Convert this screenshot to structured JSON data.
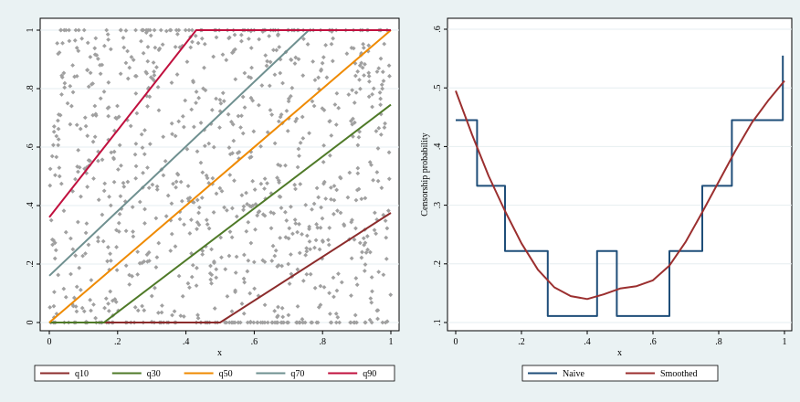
{
  "chart_data": [
    {
      "type": "scatter",
      "title": "",
      "xlabel": "x",
      "ylabel": "",
      "xlim": [
        0,
        1
      ],
      "ylim": [
        0,
        1
      ],
      "x_ticks": [
        "0",
        ".2",
        ".4",
        ".6",
        ".8",
        "1"
      ],
      "y_ticks": [
        "0",
        ".2",
        ".4",
        ".6",
        ".8",
        "1"
      ],
      "grid": true,
      "legend": "bottom",
      "scatter": {
        "color": "#a0a0a0",
        "count": 1000,
        "description_of_distribution": "censored uniform cloud"
      },
      "series": [
        {
          "name": "q10",
          "color": "#8c2c2c",
          "points": [
            [
              0,
              0
            ],
            [
              0.5,
              0
            ],
            [
              1,
              0.375
            ]
          ]
        },
        {
          "name": "q30",
          "color": "#4f7a28",
          "points": [
            [
              0,
              0
            ],
            [
              0.16,
              0
            ],
            [
              1,
              0.745
            ]
          ]
        },
        {
          "name": "q50",
          "color": "#ef8a00",
          "points": [
            [
              0,
              0
            ],
            [
              1,
              1
            ]
          ]
        },
        {
          "name": "q70",
          "color": "#6f9090",
          "points": [
            [
              0,
              0.16
            ],
            [
              0.76,
              1
            ]
          ]
        },
        {
          "name": "q90",
          "color": "#c0103e",
          "points": [
            [
              0,
              0.36
            ],
            [
              0.43,
              1
            ],
            [
              1,
              1
            ]
          ]
        }
      ]
    },
    {
      "type": "line",
      "title": "",
      "xlabel": "x",
      "ylabel": "Censorship probability",
      "xlim": [
        0,
        1
      ],
      "ylim": [
        0.1,
        0.6
      ],
      "x_ticks": [
        "0",
        ".2",
        ".4",
        ".6",
        ".8",
        "1"
      ],
      "y_ticks": [
        ".1",
        ".2",
        ".3",
        ".4",
        ".5",
        ".6"
      ],
      "grid": true,
      "legend": "bottom",
      "series": [
        {
          "name": "Naive",
          "color": "#1f4e79",
          "step": true,
          "points": [
            [
              0,
              0.445
            ],
            [
              0.065,
              0.445
            ],
            [
              0.065,
              0.333
            ],
            [
              0.15,
              0.333
            ],
            [
              0.15,
              0.222
            ],
            [
              0.28,
              0.222
            ],
            [
              0.28,
              0.111
            ],
            [
              0.43,
              0.111
            ],
            [
              0.43,
              0.222
            ],
            [
              0.49,
              0.222
            ],
            [
              0.49,
              0.111
            ],
            [
              0.65,
              0.111
            ],
            [
              0.65,
              0.222
            ],
            [
              0.75,
              0.222
            ],
            [
              0.75,
              0.333
            ],
            [
              0.84,
              0.333
            ],
            [
              0.84,
              0.445
            ],
            [
              0.995,
              0.445
            ],
            [
              0.995,
              0.555
            ]
          ]
        },
        {
          "name": "Smoothed",
          "color": "#9b2f2f",
          "step": false,
          "points": [
            [
              0,
              0.495
            ],
            [
              0.05,
              0.42
            ],
            [
              0.1,
              0.35
            ],
            [
              0.15,
              0.29
            ],
            [
              0.2,
              0.235
            ],
            [
              0.25,
              0.19
            ],
            [
              0.3,
              0.16
            ],
            [
              0.35,
              0.145
            ],
            [
              0.4,
              0.14
            ],
            [
              0.45,
              0.148
            ],
            [
              0.5,
              0.158
            ],
            [
              0.55,
              0.162
            ],
            [
              0.6,
              0.172
            ],
            [
              0.65,
              0.197
            ],
            [
              0.7,
              0.238
            ],
            [
              0.75,
              0.288
            ],
            [
              0.8,
              0.34
            ],
            [
              0.85,
              0.392
            ],
            [
              0.9,
              0.44
            ],
            [
              0.95,
              0.478
            ],
            [
              1.0,
              0.512
            ]
          ]
        }
      ]
    }
  ]
}
